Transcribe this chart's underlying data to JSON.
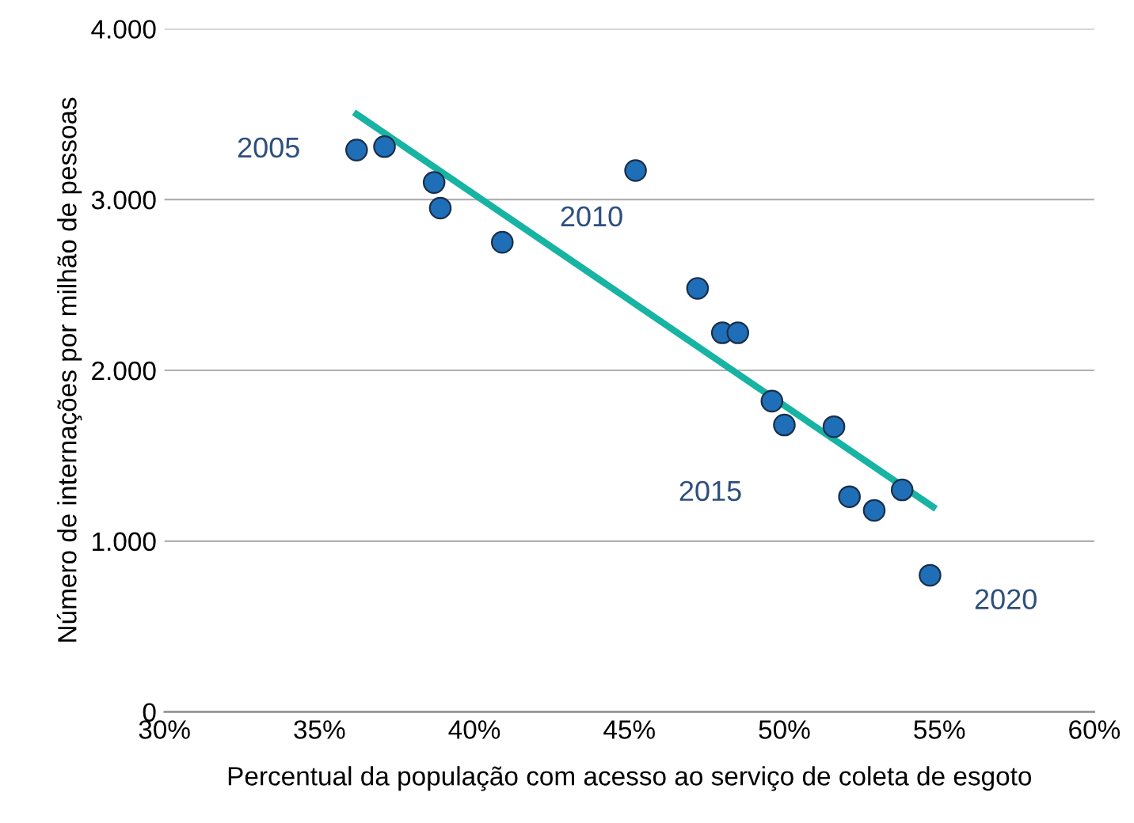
{
  "chart_data": {
    "type": "scatter",
    "xlabel": "Percentual da população com acesso ao serviço de coleta de esgoto",
    "ylabel": "Número de internações por milhão de pessoas",
    "series": [
      {
        "color": "#1f6fb8",
        "marker": "circle",
        "x": [
          36.2,
          37.1,
          38.7,
          38.9,
          40.9,
          45.2,
          47.2,
          48.0,
          48.5,
          49.6,
          50.0,
          51.6,
          52.1,
          52.9,
          53.8,
          54.7
        ],
        "values": [
          3290,
          3310,
          3100,
          2950,
          2750,
          3170,
          2480,
          2220,
          2220,
          1820,
          1680,
          1670,
          1260,
          1180,
          1300,
          800
        ]
      },
      {
        "type": "line",
        "color": "#17b3a3",
        "x": [
          36.2,
          54.8
        ],
        "values": [
          3500,
          1200
        ]
      }
    ],
    "annotations": [
      {
        "text": "2005",
        "x": 36.2,
        "y": 3290
      },
      {
        "text": "2010",
        "x": 45.2,
        "y": 3170
      },
      {
        "text": "2015",
        "x": 49.6,
        "y": 1820
      },
      {
        "text": "2020",
        "x": 54.7,
        "y": 800
      }
    ],
    "xlim": [
      30,
      60
    ],
    "xticks": [
      {
        "value": 30,
        "label": "30%"
      },
      {
        "value": 35,
        "label": "35%"
      },
      {
        "value": 40,
        "label": "40%"
      },
      {
        "value": 45,
        "label": "45%"
      },
      {
        "value": 50,
        "label": "50%"
      },
      {
        "value": 55,
        "label": "55%"
      },
      {
        "value": 60,
        "label": "60%"
      }
    ],
    "ylim": [
      0,
      4000
    ],
    "yticks": [
      {
        "value": 0,
        "label": "0"
      },
      {
        "value": 1000,
        "label": "1.000"
      },
      {
        "value": 2000,
        "label": "2.000"
      },
      {
        "value": 3000,
        "label": "3.000"
      },
      {
        "value": 4000,
        "label": "4.000"
      }
    ],
    "grid": "y",
    "legend": false
  }
}
